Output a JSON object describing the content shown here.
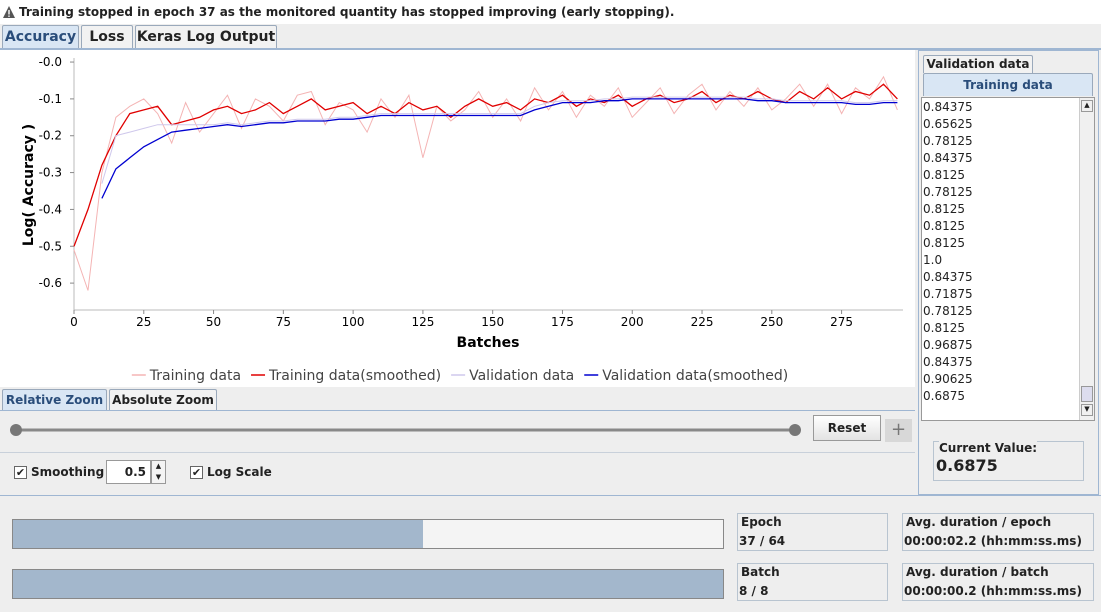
{
  "status": "Training stopped in epoch 37 as the monitored quantity has stopped improving (early stopping).",
  "tabs": [
    "Accuracy",
    "Loss",
    "Keras Log Output"
  ],
  "chart_data": {
    "type": "line",
    "y_label": "Log( Accuracy )",
    "x_label": "Batches",
    "x": [
      0,
      5,
      10,
      15,
      20,
      25,
      30,
      35,
      40,
      45,
      50,
      55,
      60,
      65,
      70,
      75,
      80,
      85,
      90,
      95,
      100,
      105,
      110,
      115,
      120,
      125,
      130,
      135,
      140,
      145,
      150,
      155,
      160,
      165,
      170,
      175,
      180,
      185,
      190,
      195,
      200,
      205,
      210,
      215,
      220,
      225,
      230,
      235,
      240,
      245,
      250,
      255,
      260,
      265,
      270,
      275,
      280,
      285,
      290,
      295
    ],
    "series": [
      {
        "name": "Training data",
        "color": "#f4b4b4",
        "width": 1,
        "values": [
          -0.51,
          -0.62,
          -0.3,
          -0.15,
          -0.12,
          -0.1,
          -0.14,
          -0.22,
          -0.11,
          -0.19,
          -0.14,
          -0.09,
          -0.18,
          -0.1,
          -0.12,
          -0.16,
          -0.09,
          -0.08,
          -0.17,
          -0.11,
          -0.13,
          -0.19,
          -0.1,
          -0.15,
          -0.09,
          -0.26,
          -0.12,
          -0.16,
          -0.13,
          -0.08,
          -0.15,
          -0.1,
          -0.16,
          -0.07,
          -0.13,
          -0.08,
          -0.15,
          -0.09,
          -0.12,
          -0.07,
          -0.15,
          -0.11,
          -0.07,
          -0.14,
          -0.09,
          -0.06,
          -0.13,
          -0.08,
          -0.12,
          -0.07,
          -0.13,
          -0.1,
          -0.06,
          -0.12,
          -0.06,
          -0.14,
          -0.07,
          -0.1,
          -0.04,
          -0.13
        ]
      },
      {
        "name": "Training data(smoothed)",
        "color": "#e00000",
        "width": 1.3,
        "values": [
          -0.5,
          -0.4,
          -0.28,
          -0.2,
          -0.14,
          -0.13,
          -0.12,
          -0.17,
          -0.16,
          -0.15,
          -0.13,
          -0.12,
          -0.14,
          -0.13,
          -0.11,
          -0.14,
          -0.12,
          -0.1,
          -0.13,
          -0.12,
          -0.11,
          -0.14,
          -0.12,
          -0.14,
          -0.11,
          -0.13,
          -0.12,
          -0.15,
          -0.12,
          -0.1,
          -0.12,
          -0.11,
          -0.13,
          -0.1,
          -0.11,
          -0.09,
          -0.12,
          -0.1,
          -0.11,
          -0.09,
          -0.12,
          -0.1,
          -0.09,
          -0.11,
          -0.1,
          -0.08,
          -0.11,
          -0.09,
          -0.1,
          -0.08,
          -0.1,
          -0.11,
          -0.08,
          -0.1,
          -0.07,
          -0.1,
          -0.08,
          -0.09,
          -0.06,
          -0.1
        ]
      },
      {
        "name": "Validation data",
        "color": "#cfc8ec",
        "width": 1,
        "values": [
          null,
          null,
          -0.33,
          -0.2,
          -0.19,
          -0.18,
          -0.17,
          -0.17,
          -0.17,
          -0.17,
          -0.17,
          -0.165,
          -0.17,
          -0.165,
          -0.16,
          -0.16,
          -0.155,
          -0.155,
          -0.155,
          -0.15,
          -0.15,
          -0.145,
          -0.14,
          -0.14,
          -0.14,
          -0.14,
          -0.14,
          -0.14,
          -0.14,
          -0.14,
          -0.14,
          -0.14,
          -0.14,
          -0.12,
          -0.11,
          -0.105,
          -0.105,
          -0.105,
          -0.1,
          -0.1,
          -0.095,
          -0.095,
          -0.095,
          -0.095,
          -0.095,
          -0.095,
          -0.095,
          -0.095,
          -0.095,
          -0.1,
          -0.1,
          -0.105,
          -0.105,
          -0.105,
          -0.105,
          -0.105,
          -0.11,
          -0.11,
          -0.105,
          -0.105
        ]
      },
      {
        "name": "Validation data(smoothed)",
        "color": "#0000d0",
        "width": 1.3,
        "values": [
          null,
          null,
          -0.37,
          -0.29,
          -0.26,
          -0.23,
          -0.21,
          -0.19,
          -0.185,
          -0.18,
          -0.175,
          -0.17,
          -0.175,
          -0.17,
          -0.165,
          -0.165,
          -0.16,
          -0.16,
          -0.16,
          -0.155,
          -0.155,
          -0.15,
          -0.145,
          -0.145,
          -0.145,
          -0.145,
          -0.145,
          -0.145,
          -0.145,
          -0.145,
          -0.145,
          -0.145,
          -0.145,
          -0.13,
          -0.12,
          -0.11,
          -0.11,
          -0.11,
          -0.105,
          -0.105,
          -0.1,
          -0.1,
          -0.1,
          -0.1,
          -0.1,
          -0.1,
          -0.1,
          -0.1,
          -0.1,
          -0.105,
          -0.105,
          -0.11,
          -0.11,
          -0.11,
          -0.11,
          -0.11,
          -0.115,
          -0.115,
          -0.11,
          -0.11
        ]
      }
    ],
    "xlim": [
      0,
      297
    ],
    "ylim": [
      -0.673,
      0.011
    ],
    "xticks": [
      0,
      25,
      50,
      75,
      100,
      125,
      150,
      175,
      200,
      225,
      250,
      275
    ],
    "yticks": [
      {
        "value": 0,
        "label": "-0.0"
      },
      -0.1,
      -0.2,
      -0.3,
      -0.4,
      -0.5,
      -0.6
    ]
  },
  "zoom_tabs": [
    "Relative Zoom",
    "Absolute Zoom"
  ],
  "reset_button": "Reset",
  "smoothing": {
    "label": "Smoothing",
    "checked": true,
    "value": "0.5"
  },
  "log_scale": {
    "label": "Log Scale",
    "checked": true
  },
  "side_tabs": [
    "Validation data",
    "Training data"
  ],
  "side_values": [
    "0.84375",
    "0.65625",
    "0.78125",
    "0.84375",
    "0.8125",
    "0.78125",
    "0.8125",
    "0.8125",
    "0.8125",
    "1.0",
    "0.84375",
    "0.71875",
    "0.78125",
    "0.8125",
    "0.96875",
    "0.84375",
    "0.90625",
    "0.6875"
  ],
  "current_value": {
    "label": "Current Value:",
    "value": "0.6875"
  },
  "progress": [
    {
      "label": "Epoch",
      "value": "37 / 64",
      "duration_label": "Avg. duration / epoch",
      "duration": "00:00:02.2 (hh:mm:ss.ms)"
    },
    {
      "label": "Batch",
      "value": "8 / 8",
      "duration_label": "Avg. duration / batch",
      "duration": "00:00:00.2 (hh:mm:ss.ms)"
    }
  ]
}
